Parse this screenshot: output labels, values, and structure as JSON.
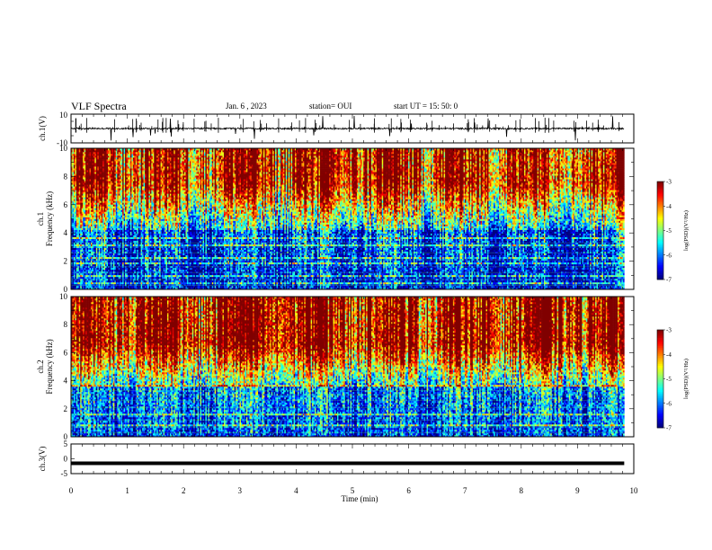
{
  "header": {
    "title": "VLF Spectra",
    "date": "Jan. 6  , 2023",
    "station": "station= OUI",
    "start": "start  UT  =   15: 50: 0"
  },
  "chart_data": [
    {
      "type": "line",
      "name": "ch1-waveform",
      "ylabel": "ch.1(V)",
      "ylim": [
        -10,
        10
      ],
      "yticks": [
        "10",
        "-10"
      ],
      "xlim": [
        0,
        10
      ],
      "baseline": 0,
      "color": "#000000"
    },
    {
      "type": "heatmap",
      "name": "ch1-spectrogram",
      "ylabel_top": "ch.1",
      "ylabel": "Frequency (kHz)",
      "ylim": [
        0,
        10
      ],
      "yticks": [
        0,
        2,
        4,
        6,
        8,
        10
      ],
      "xlim": [
        0,
        9.83
      ],
      "colorbar": {
        "label": "log(PSD)(V²/Hz)",
        "range": [
          -7,
          -3
        ],
        "ticks": [
          "-3",
          "-4",
          "-5",
          "-6",
          "-7"
        ]
      }
    },
    {
      "type": "heatmap",
      "name": "ch2-spectrogram",
      "ylabel_top": "ch.2",
      "ylabel": "Frequency (kHz)",
      "ylim": [
        0,
        10
      ],
      "yticks": [
        0,
        2,
        4,
        6,
        8,
        10
      ],
      "xlim": [
        0,
        9.83
      ],
      "colorbar": {
        "label": "log(PSD)(V²/Hz)",
        "range": [
          -7,
          -3
        ],
        "ticks": [
          "-3",
          "-4",
          "-5",
          "-6",
          "-7"
        ]
      }
    },
    {
      "type": "line",
      "name": "ch3-voltage",
      "ylabel": "ch.3(V)",
      "ylim": [
        -5,
        5
      ],
      "yticks": [
        "5",
        "0",
        "-5"
      ],
      "xlim": [
        0,
        10
      ],
      "x": [
        0,
        9.83
      ],
      "y": [
        -1.5,
        -1.5
      ],
      "color": "#000000"
    }
  ],
  "xaxis": {
    "label": "Time  (min)",
    "ticks": [
      "0",
      "1",
      "2",
      "3",
      "4",
      "5",
      "6",
      "7",
      "8",
      "9",
      "10"
    ]
  }
}
